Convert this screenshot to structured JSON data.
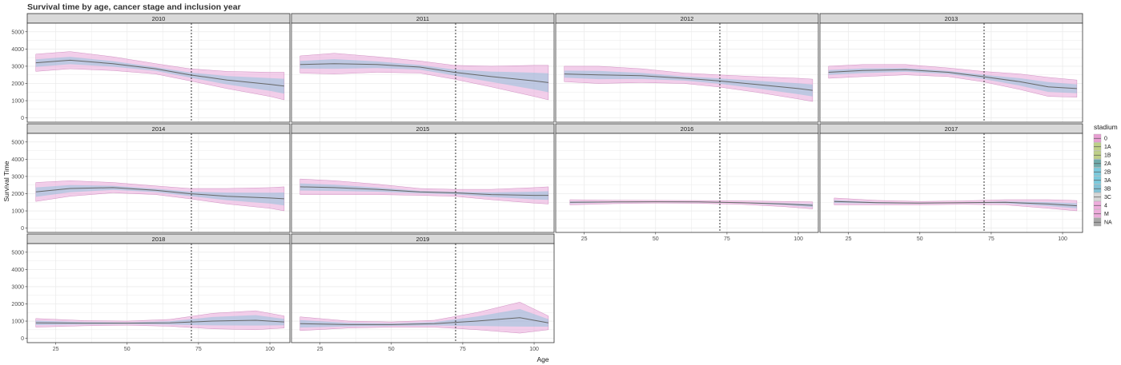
{
  "chart_data": {
    "type": "line",
    "title": "Survival time by age, cancer stage and inclusion year",
    "xlabel": "Age",
    "ylabel": "Survival Time",
    "xlim": [
      15,
      107
    ],
    "ylim": [
      -250,
      5500
    ],
    "x_ticks": [
      25,
      50,
      75,
      100
    ],
    "y_ticks": [
      0,
      1000,
      2000,
      3000,
      4000,
      5000
    ],
    "reference_line_x": 72.5,
    "grid": true,
    "legend_position": "right",
    "legend_title": "stadium",
    "series_names": [
      "0",
      "1A",
      "1B",
      "2A",
      "2B",
      "3A",
      "3B",
      "3C",
      "4",
      "M",
      "NA"
    ],
    "series_colors": [
      "#e07fc4",
      "#a8c05f",
      "#a8c05f",
      "#3f8f8f",
      "#4fb8d2",
      "#4fb8d2",
      "#58aec8",
      "#c8c8c8",
      "#e890d0",
      "#e890d0",
      "#8a8a8a"
    ],
    "panels": [
      {
        "label": "2010",
        "x": [
          18,
          30,
          45,
          60,
          72,
          85,
          100,
          105
        ],
        "mean": [
          3200,
          3350,
          3150,
          2850,
          2500,
          2200,
          1950,
          1850
        ],
        "band": [
          500,
          500,
          400,
          300,
          350,
          500,
          700,
          800
        ]
      },
      {
        "label": "2011",
        "x": [
          18,
          30,
          45,
          60,
          72,
          85,
          100,
          105
        ],
        "mean": [
          3100,
          3150,
          3100,
          2950,
          2650,
          2400,
          2150,
          2050
        ],
        "band": [
          500,
          600,
          450,
          350,
          400,
          600,
          900,
          1000
        ]
      },
      {
        "label": "2012",
        "x": [
          18,
          30,
          45,
          60,
          72,
          85,
          100,
          105
        ],
        "mean": [
          2550,
          2500,
          2450,
          2300,
          2150,
          1950,
          1700,
          1600
        ],
        "band": [
          450,
          500,
          400,
          300,
          350,
          450,
          600,
          650
        ]
      },
      {
        "label": "2013",
        "x": [
          18,
          30,
          45,
          60,
          72,
          85,
          95,
          105
        ],
        "mean": [
          2650,
          2750,
          2800,
          2650,
          2400,
          2100,
          1800,
          1700
        ],
        "band": [
          350,
          350,
          300,
          250,
          300,
          450,
          550,
          500
        ]
      },
      {
        "label": "2014",
        "x": [
          18,
          30,
          45,
          60,
          72,
          85,
          100,
          105
        ],
        "mean": [
          2100,
          2300,
          2350,
          2200,
          2000,
          1850,
          1750,
          1700
        ],
        "band": [
          550,
          450,
          300,
          250,
          300,
          450,
          600,
          700
        ]
      },
      {
        "label": "2015",
        "x": [
          18,
          30,
          45,
          60,
          72,
          85,
          100,
          105
        ],
        "mean": [
          2400,
          2350,
          2250,
          2100,
          2050,
          1950,
          1900,
          1900
        ],
        "band": [
          450,
          400,
          300,
          200,
          200,
          300,
          450,
          500
        ]
      },
      {
        "label": "2016",
        "x": [
          20,
          35,
          50,
          65,
          80,
          95,
          105
        ],
        "mean": [
          1500,
          1520,
          1530,
          1520,
          1480,
          1400,
          1320
        ],
        "band": [
          150,
          100,
          80,
          80,
          100,
          150,
          200
        ]
      },
      {
        "label": "2017",
        "x": [
          20,
          35,
          50,
          65,
          80,
          95,
          105
        ],
        "mean": [
          1550,
          1480,
          1450,
          1480,
          1500,
          1400,
          1300
        ],
        "band": [
          200,
          130,
          100,
          100,
          150,
          250,
          300
        ]
      },
      {
        "label": "2018",
        "x": [
          18,
          35,
          50,
          65,
          80,
          95,
          105
        ],
        "mean": [
          900,
          880,
          880,
          900,
          1000,
          1050,
          950
        ],
        "band": [
          250,
          150,
          120,
          200,
          450,
          550,
          350
        ]
      },
      {
        "label": "2019",
        "x": [
          18,
          35,
          50,
          65,
          80,
          95,
          105
        ],
        "mean": [
          850,
          800,
          800,
          850,
          1000,
          1200,
          900
        ],
        "band": [
          400,
          200,
          150,
          200,
          500,
          900,
          400
        ]
      }
    ]
  }
}
